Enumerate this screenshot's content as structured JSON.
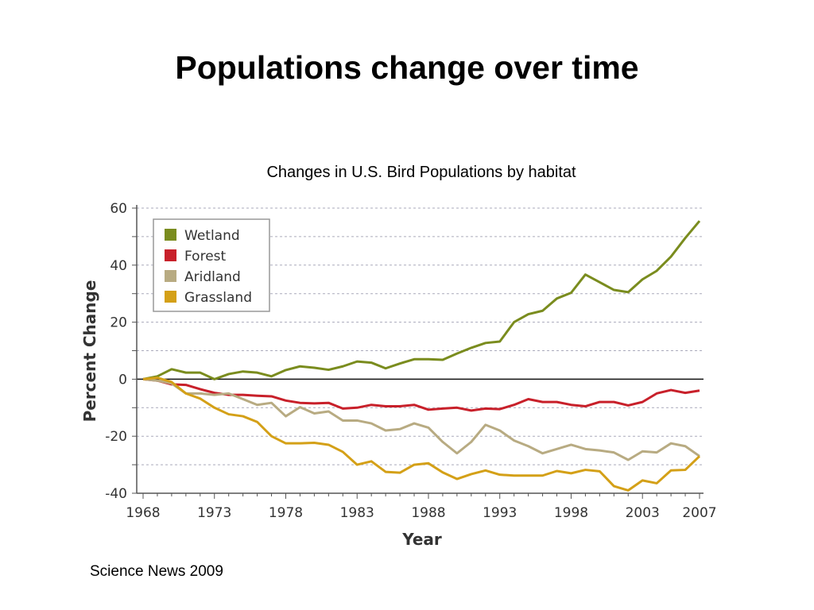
{
  "slide": {
    "title": "Populations change over time",
    "subtitle": "Changes in U.S. Bird Populations by habitat",
    "source": "Science News 2009"
  },
  "chart_data": {
    "type": "line",
    "title": "Changes in U.S. Bird Populations by habitat",
    "xlabel": "Year",
    "ylabel": "Percent Change",
    "xlim": [
      1968,
      2007
    ],
    "ylim": [
      -40,
      60
    ],
    "x_ticks": [
      "1968",
      "1973",
      "1978",
      "1983",
      "1988",
      "1993",
      "1998",
      "2003",
      "2007"
    ],
    "y_ticks": [
      "60",
      "40",
      "20",
      "0",
      "-20",
      "-40"
    ],
    "grid": "horizontal dashed every 10",
    "legend_position": "top-left",
    "x": [
      1968,
      1969,
      1970,
      1971,
      1972,
      1973,
      1974,
      1975,
      1976,
      1977,
      1978,
      1979,
      1980,
      1981,
      1982,
      1983,
      1984,
      1985,
      1986,
      1987,
      1988,
      1989,
      1990,
      1991,
      1992,
      1993,
      1994,
      1995,
      1996,
      1997,
      1998,
      1999,
      2000,
      2001,
      2002,
      2003,
      2004,
      2005,
      2006,
      2007
    ],
    "series": [
      {
        "name": "Wetland",
        "color": "#7a8c1e",
        "values": [
          0,
          1,
          3.5,
          2.3,
          2.3,
          0,
          1.8,
          2.7,
          2.3,
          1,
          3.2,
          4.5,
          4,
          3.3,
          4.5,
          6.2,
          5.8,
          3.8,
          5.5,
          7,
          7,
          6.8,
          9,
          11,
          12.7,
          13.2,
          20,
          22.8,
          24,
          28.3,
          30.3,
          36.7,
          34,
          31.3,
          30.5,
          35,
          38,
          43,
          49.5,
          55.5
        ]
      },
      {
        "name": "Forest",
        "color": "#c8202a",
        "values": [
          0,
          -0.5,
          -1.8,
          -2,
          -3.5,
          -4.8,
          -5.5,
          -5.5,
          -5.8,
          -6,
          -7.5,
          -8.3,
          -8.5,
          -8.3,
          -10.3,
          -10,
          -9,
          -9.5,
          -9.5,
          -9,
          -10.7,
          -10.3,
          -10,
          -11,
          -10.3,
          -10.5,
          -9,
          -7,
          -8,
          -8,
          -9,
          -9.5,
          -8,
          -8,
          -9.2,
          -8,
          -5,
          -3.8,
          -4.8,
          -4
        ]
      },
      {
        "name": "Aridland",
        "color": "#b8ab82",
        "values": [
          0,
          -0.5,
          -1.5,
          -5,
          -5,
          -5.5,
          -5,
          -7,
          -9,
          -8.3,
          -13,
          -9.8,
          -12,
          -11.3,
          -14.5,
          -14.5,
          -15.5,
          -18,
          -17.5,
          -15.5,
          -17,
          -22,
          -26,
          -22,
          -16,
          -18,
          -21.5,
          -23.5,
          -26,
          -24.5,
          -23,
          -24.5,
          -25,
          -25.7,
          -28.3,
          -25.3,
          -25.7,
          -22.5,
          -23.5,
          -27
        ]
      },
      {
        "name": "Grassland",
        "color": "#d4a017",
        "values": [
          0,
          0.5,
          -1,
          -5,
          -6.8,
          -10,
          -12.3,
          -13,
          -15,
          -20,
          -22.5,
          -22.5,
          -22.3,
          -23,
          -25.5,
          -30,
          -28.8,
          -32.5,
          -32.8,
          -30,
          -29.5,
          -32.7,
          -35,
          -33.3,
          -32,
          -33.5,
          -33.8,
          -33.8,
          -33.8,
          -32.2,
          -33,
          -31.8,
          -32.3,
          -37.5,
          -39,
          -35.5,
          -36.5,
          -32,
          -31.8,
          -27
        ]
      }
    ]
  }
}
